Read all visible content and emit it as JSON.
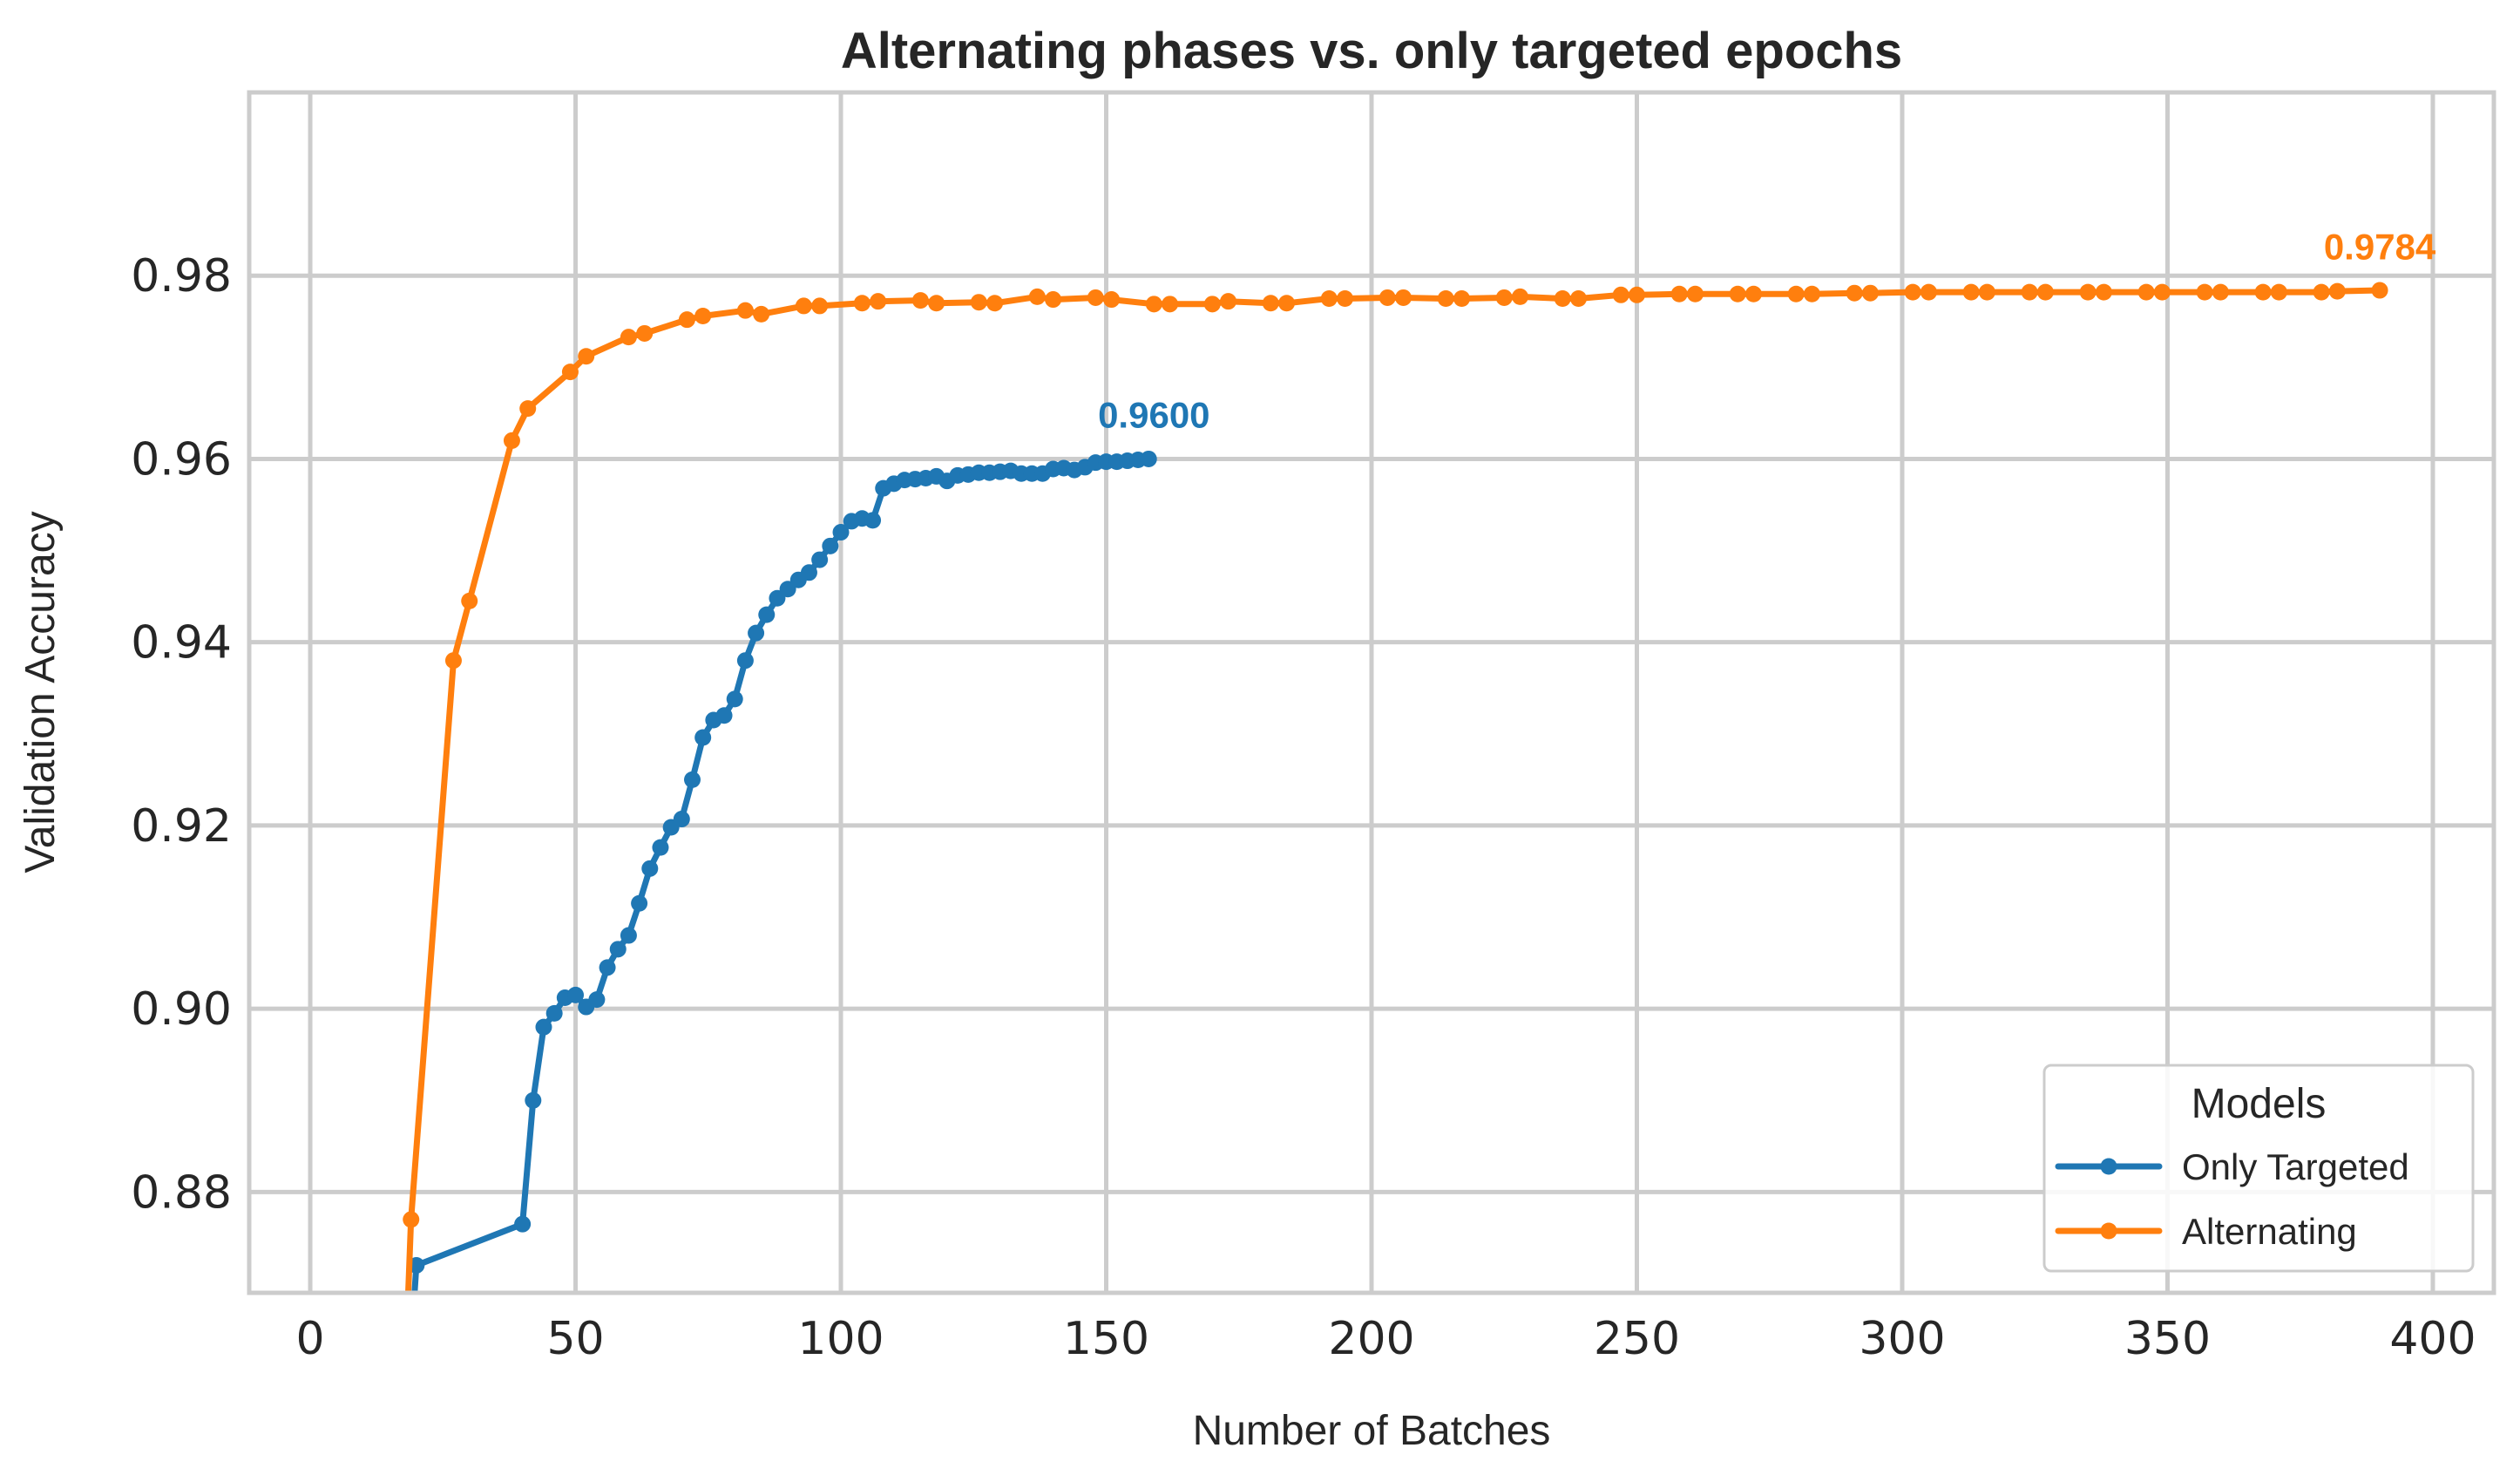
{
  "chart_data": {
    "type": "line",
    "title": "Alternating phases vs. only targeted epochs",
    "xlabel": "Number of Batches",
    "ylabel": "Validation Accuracy",
    "xlim": [
      -11.5,
      411.5
    ],
    "ylim": [
      0.869,
      1.0
    ],
    "xticks": [
      0,
      50,
      100,
      150,
      200,
      250,
      300,
      350,
      400
    ],
    "yticks": [
      0.88,
      0.9,
      0.92,
      0.94,
      0.96,
      0.98
    ],
    "xtick_labels": [
      "0",
      "50",
      "100",
      "150",
      "200",
      "250",
      "300",
      "350",
      "400"
    ],
    "ytick_labels": [
      "0.88",
      "0.90",
      "0.92",
      "0.94",
      "0.96",
      "0.98"
    ],
    "grid": true,
    "legend": {
      "title": "Models",
      "position": "lower-right"
    },
    "series": [
      {
        "name": "Only Targeted",
        "color": "#1f77b4",
        "x": [
          19,
          20,
          40,
          42,
          44,
          46,
          48,
          50,
          52,
          54,
          56,
          58,
          60,
          62,
          64,
          66,
          68,
          70,
          72,
          74,
          76,
          78,
          80,
          82,
          84,
          86,
          88,
          90,
          92,
          94,
          96,
          98,
          100,
          102,
          104,
          106,
          108,
          110,
          112,
          114,
          116,
          118,
          120,
          122,
          124,
          126,
          128,
          130,
          132,
          134,
          136,
          138,
          140,
          142,
          144,
          146,
          148,
          150,
          152,
          154,
          156,
          158
        ],
        "y": [
          0.863,
          0.872,
          0.8765,
          0.89,
          0.898,
          0.8995,
          0.9012,
          0.9015,
          0.9002,
          0.901,
          0.9045,
          0.9065,
          0.908,
          0.9115,
          0.9153,
          0.9176,
          0.9198,
          0.9207,
          0.925,
          0.9296,
          0.9315,
          0.932,
          0.9338,
          0.938,
          0.941,
          0.943,
          0.9448,
          0.9458,
          0.9468,
          0.9476,
          0.949,
          0.9505,
          0.952,
          0.9532,
          0.9535,
          0.9533,
          0.9568,
          0.9573,
          0.9577,
          0.9578,
          0.9579,
          0.9581,
          0.9576,
          0.9582,
          0.9583,
          0.9585,
          0.9585,
          0.9586,
          0.9587,
          0.9584,
          0.9584,
          0.9584,
          0.9589,
          0.959,
          0.9588,
          0.9591,
          0.9596,
          0.9597,
          0.9597,
          0.9598,
          0.9599,
          0.96
        ]
      },
      {
        "name": "Alternating",
        "color": "#ff7f0e",
        "x": [
          18,
          19,
          27,
          30,
          38,
          41,
          49,
          52,
          60,
          63,
          71,
          74,
          82,
          85,
          93,
          96,
          104,
          107,
          115,
          118,
          126,
          129,
          137,
          140,
          148,
          151,
          159,
          162,
          170,
          173,
          181,
          184,
          192,
          195,
          203,
          206,
          214,
          217,
          225,
          228,
          236,
          239,
          247,
          250,
          258,
          261,
          269,
          272,
          280,
          283,
          291,
          294,
          302,
          305,
          313,
          316,
          324,
          327,
          335,
          338,
          346,
          349,
          357,
          360,
          368,
          371,
          379,
          382,
          390
        ],
        "y": [
          0.862,
          0.877,
          0.938,
          0.9445,
          0.962,
          0.9655,
          0.9695,
          0.9712,
          0.9733,
          0.9737,
          0.9752,
          0.9756,
          0.9762,
          0.9758,
          0.9767,
          0.9767,
          0.977,
          0.9772,
          0.9773,
          0.977,
          0.9771,
          0.977,
          0.9777,
          0.9774,
          0.9776,
          0.9774,
          0.9769,
          0.9769,
          0.9769,
          0.9772,
          0.977,
          0.977,
          0.9775,
          0.9775,
          0.9776,
          0.9776,
          0.9775,
          0.9775,
          0.9776,
          0.9777,
          0.9775,
          0.9775,
          0.9779,
          0.9779,
          0.978,
          0.978,
          0.978,
          0.978,
          0.978,
          0.978,
          0.9781,
          0.9781,
          0.9782,
          0.9782,
          0.9782,
          0.9782,
          0.9782,
          0.9782,
          0.9782,
          0.9782,
          0.9782,
          0.9782,
          0.9782,
          0.9782,
          0.9782,
          0.9782,
          0.9782,
          0.9783,
          0.9784
        ]
      }
    ],
    "annotations": [
      {
        "text": "0.9600",
        "x": 159,
        "y": 0.9634,
        "color": "#1f77b4"
      },
      {
        "text": "0.9784",
        "x": 390,
        "y": 0.9818,
        "color": "#ff7f0e"
      }
    ]
  }
}
